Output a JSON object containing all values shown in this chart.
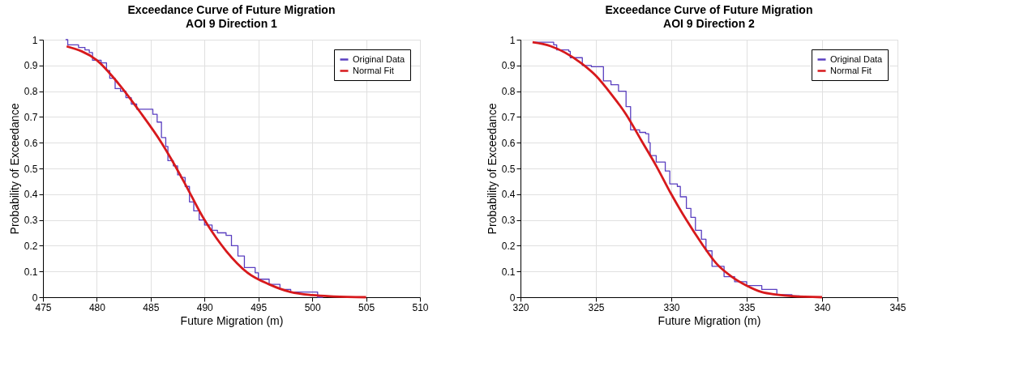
{
  "chart_data": [
    {
      "type": "line",
      "title": "Exceedance Curve of Future Migration",
      "subtitle": "AOI 9 Direction 1",
      "xlabel": "Future Migration (m)",
      "ylabel": "Probability of Exceedance",
      "xlim": [
        475,
        510
      ],
      "xticks": [
        475,
        480,
        485,
        490,
        495,
        500,
        505,
        510
      ],
      "ylim": [
        0,
        1
      ],
      "yticks": [
        0,
        0.1,
        0.2,
        0.3,
        0.4,
        0.5,
        0.6,
        0.7,
        0.8,
        0.9,
        1
      ],
      "grid": true,
      "legend": "top right",
      "series": [
        {
          "name": "Original Data",
          "type": "step",
          "color": "#5a3fc0",
          "x": [
            477.1,
            477.3,
            478.3,
            478.9,
            479.3,
            479.6,
            480.4,
            480.9,
            481.2,
            481.7,
            482.2,
            482.7,
            483.2,
            483.7,
            484.8,
            485.2,
            485.6,
            486.0,
            486.4,
            486.6,
            487.1,
            487.5,
            487.8,
            488.2,
            488.6,
            489.0,
            489.5,
            490.0,
            490.7,
            491.2,
            492.0,
            492.5,
            493.1,
            493.7,
            494.7,
            495.0,
            496.0,
            497.0,
            498.0,
            500.5,
            501.0
          ],
          "values": [
            1.0,
            0.98,
            0.97,
            0.96,
            0.95,
            0.92,
            0.91,
            0.88,
            0.85,
            0.81,
            0.8,
            0.775,
            0.75,
            0.73,
            0.73,
            0.71,
            0.68,
            0.62,
            0.585,
            0.53,
            0.51,
            0.475,
            0.465,
            0.43,
            0.37,
            0.335,
            0.3,
            0.28,
            0.26,
            0.25,
            0.24,
            0.2,
            0.16,
            0.115,
            0.095,
            0.07,
            0.05,
            0.03,
            0.02,
            0.0,
            0.0
          ]
        },
        {
          "name": "Normal Fit",
          "color": "#d7191c",
          "x": [
            477.2,
            480,
            482,
            484,
            486,
            487,
            488,
            490,
            492,
            494,
            496,
            498,
            500,
            502,
            505
          ],
          "values": [
            0.974,
            0.92,
            0.83,
            0.72,
            0.6,
            0.53,
            0.455,
            0.3,
            0.18,
            0.095,
            0.05,
            0.02,
            0.008,
            0.003,
            0.0
          ]
        }
      ]
    },
    {
      "type": "line",
      "title": "Exceedance Curve of Future Migration",
      "subtitle": "AOI 9 Direction 2",
      "xlabel": "Future Migration (m)",
      "ylabel": "Probability of Exceedance",
      "xlim": [
        320,
        345
      ],
      "xticks": [
        320,
        325,
        330,
        335,
        340,
        345
      ],
      "ylim": [
        0,
        1
      ],
      "yticks": [
        0,
        0.1,
        0.2,
        0.3,
        0.4,
        0.5,
        0.6,
        0.7,
        0.8,
        0.9,
        1
      ],
      "grid": true,
      "legend": "top right",
      "series": [
        {
          "name": "Original Data",
          "type": "step",
          "color": "#5a3fc0",
          "x": [
            320.9,
            322.2,
            322.4,
            323.2,
            323.3,
            323.9,
            324.1,
            324.7,
            325.5,
            326.0,
            326.5,
            327.0,
            327.3,
            327.9,
            328.3,
            328.5,
            328.6,
            329.0,
            329.3,
            329.6,
            329.9,
            330.4,
            330.6,
            331.0,
            331.3,
            331.6,
            332.0,
            332.3,
            332.7,
            333.5,
            334.2,
            335.0,
            336.0,
            337.0,
            338.0,
            338.5
          ],
          "values": [
            0.99,
            0.98,
            0.96,
            0.955,
            0.93,
            0.93,
            0.9,
            0.895,
            0.84,
            0.825,
            0.8,
            0.74,
            0.65,
            0.64,
            0.635,
            0.6,
            0.55,
            0.525,
            0.525,
            0.49,
            0.44,
            0.43,
            0.39,
            0.345,
            0.31,
            0.26,
            0.225,
            0.18,
            0.12,
            0.08,
            0.06,
            0.045,
            0.03,
            0.01,
            0.005,
            0.0
          ]
        },
        {
          "name": "Normal Fit",
          "color": "#d7191c",
          "x": [
            320.8,
            322,
            324,
            325,
            326,
            327,
            328,
            329,
            330,
            331,
            332,
            333,
            334,
            335,
            336,
            337,
            338,
            340
          ],
          "values": [
            0.99,
            0.975,
            0.91,
            0.86,
            0.79,
            0.71,
            0.61,
            0.51,
            0.4,
            0.3,
            0.21,
            0.13,
            0.08,
            0.045,
            0.02,
            0.01,
            0.004,
            0.0
          ]
        }
      ]
    }
  ]
}
